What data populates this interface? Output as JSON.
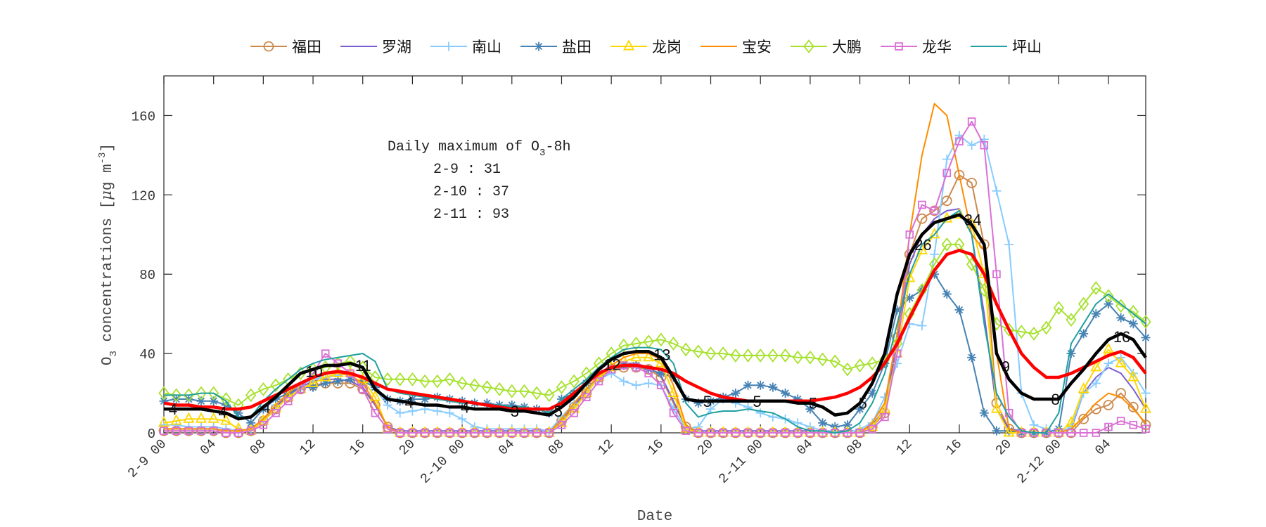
{
  "chart_data": {
    "type": "line",
    "xlabel": "Date",
    "ylabel_parts": {
      "o": "O",
      "sub": "3",
      "mid": " concentrations [",
      "mu": "μ",
      "g": "g m",
      "sup": "-3",
      "end": "]"
    },
    "ylim": [
      0,
      180
    ],
    "yticks": [
      0,
      40,
      80,
      120,
      160
    ],
    "xlim": [
      0,
      79
    ],
    "x_unit": "hours from 2-9 00",
    "xticks": [
      {
        "h": 0,
        "label": "2-9 00"
      },
      {
        "h": 4,
        "label": "04"
      },
      {
        "h": 8,
        "label": "08"
      },
      {
        "h": 12,
        "label": "12"
      },
      {
        "h": 16,
        "label": "16"
      },
      {
        "h": 20,
        "label": "20"
      },
      {
        "h": 24,
        "label": "2-10 00"
      },
      {
        "h": 28,
        "label": "04"
      },
      {
        "h": 32,
        "label": "08"
      },
      {
        "h": 36,
        "label": "12"
      },
      {
        "h": 40,
        "label": "16"
      },
      {
        "h": 44,
        "label": "20"
      },
      {
        "h": 48,
        "label": "2-11 00"
      },
      {
        "h": 52,
        "label": "04"
      },
      {
        "h": 56,
        "label": "08"
      },
      {
        "h": 60,
        "label": "12"
      },
      {
        "h": 64,
        "label": "16"
      },
      {
        "h": 68,
        "label": "20"
      },
      {
        "h": 72,
        "label": "2-12 00"
      },
      {
        "h": 76,
        "label": "04"
      }
    ],
    "grid": false,
    "legend_position": "top",
    "series": [
      {
        "name": "福田",
        "color": "#CD8A4E",
        "marker": "circle",
        "values": [
          1,
          1,
          1,
          1,
          1,
          0,
          0,
          1,
          6,
          12,
          18,
          22,
          24,
          25,
          25,
          25,
          22,
          14,
          3,
          0,
          0,
          0,
          0,
          0,
          0,
          0,
          0,
          0,
          0,
          0,
          0,
          0,
          6,
          13,
          20,
          28,
          32,
          33,
          33,
          32,
          28,
          15,
          3,
          0,
          0,
          0,
          0,
          0,
          0,
          0,
          0,
          0,
          0,
          0,
          0,
          0,
          0,
          3,
          10,
          48,
          90,
          108,
          112,
          117,
          130,
          126,
          95,
          15,
          2,
          0,
          0,
          0,
          0,
          0,
          7,
          12,
          14,
          20,
          13,
          4
        ]
      },
      {
        "name": "罗湖",
        "color": "#7B5FD2",
        "marker": "none",
        "values": [
          2,
          2,
          2,
          2,
          2,
          1,
          1,
          2,
          7,
          13,
          19,
          23,
          26,
          27,
          27,
          26,
          23,
          14,
          3,
          1,
          1,
          1,
          1,
          1,
          1,
          1,
          1,
          1,
          1,
          1,
          1,
          1,
          7,
          14,
          21,
          29,
          33,
          35,
          35,
          33,
          29,
          16,
          3,
          1,
          1,
          1,
          1,
          1,
          1,
          1,
          1,
          1,
          1,
          1,
          1,
          1,
          1,
          4,
          12,
          45,
          85,
          100,
          108,
          112,
          113,
          100,
          60,
          12,
          2,
          1,
          0,
          0,
          0,
          2,
          20,
          28,
          33,
          30,
          22,
          12
        ]
      },
      {
        "name": "南山",
        "color": "#88CCFF",
        "marker": "plus",
        "values": [
          4,
          4,
          3,
          3,
          3,
          2,
          1,
          2,
          7,
          14,
          20,
          24,
          27,
          28,
          29,
          30,
          28,
          22,
          14,
          10,
          11,
          12,
          11,
          10,
          7,
          3,
          2,
          2,
          2,
          2,
          2,
          1,
          8,
          15,
          22,
          27,
          30,
          26,
          24,
          25,
          24,
          12,
          2,
          3,
          12,
          17,
          15,
          13,
          10,
          8,
          7,
          5,
          3,
          1,
          1,
          0,
          2,
          5,
          18,
          35,
          55,
          54,
          90,
          138,
          150,
          145,
          148,
          122,
          95,
          20,
          4,
          2,
          0,
          3,
          20,
          25,
          35,
          38,
          30,
          20
        ]
      },
      {
        "name": "盐田",
        "color": "#4682B4",
        "marker": "asterisk",
        "values": [
          16,
          17,
          17,
          16,
          16,
          14,
          10,
          5,
          12,
          17,
          20,
          23,
          23,
          25,
          26,
          27,
          26,
          23,
          17,
          16,
          17,
          17,
          18,
          17,
          16,
          15,
          15,
          14,
          14,
          13,
          12,
          10,
          17,
          20,
          25,
          30,
          33,
          34,
          34,
          32,
          30,
          28,
          17,
          15,
          16,
          18,
          20,
          24,
          24,
          23,
          20,
          17,
          12,
          5,
          3,
          4,
          12,
          20,
          35,
          62,
          68,
          72,
          80,
          70,
          62,
          38,
          10,
          1,
          1,
          0,
          0,
          0,
          2,
          40,
          50,
          60,
          65,
          58,
          55,
          48
        ]
      },
      {
        "name": "龙岗",
        "color": "#FFD700",
        "marker": "triangle",
        "values": [
          5,
          6,
          7,
          7,
          7,
          6,
          2,
          1,
          6,
          12,
          18,
          22,
          25,
          28,
          30,
          30,
          27,
          18,
          2,
          0,
          0,
          0,
          0,
          0,
          0,
          0,
          0,
          0,
          0,
          0,
          0,
          0,
          5,
          12,
          20,
          28,
          33,
          36,
          38,
          38,
          35,
          20,
          2,
          0,
          0,
          0,
          0,
          0,
          0,
          0,
          0,
          0,
          0,
          0,
          0,
          0,
          0,
          3,
          12,
          40,
          78,
          92,
          100,
          108,
          110,
          105,
          80,
          12,
          0,
          0,
          0,
          0,
          0,
          5,
          22,
          33,
          42,
          35,
          28,
          12
        ]
      },
      {
        "name": "宝安",
        "color": "#FF8C00",
        "marker": "none",
        "values": [
          2,
          2,
          2,
          2,
          2,
          1,
          1,
          2,
          7,
          14,
          20,
          25,
          28,
          30,
          30,
          29,
          25,
          15,
          3,
          0,
          0,
          0,
          0,
          0,
          0,
          0,
          0,
          0,
          0,
          0,
          0,
          0,
          7,
          15,
          22,
          29,
          34,
          38,
          40,
          40,
          37,
          24,
          4,
          0,
          0,
          0,
          0,
          0,
          0,
          0,
          0,
          0,
          0,
          0,
          0,
          0,
          0,
          5,
          15,
          50,
          100,
          140,
          166,
          160,
          130,
          100,
          92,
          40,
          2,
          0,
          0,
          0,
          0,
          2,
          8,
          15,
          20,
          18,
          12,
          5
        ]
      },
      {
        "name": "大鹏",
        "color": "#A6E22E",
        "marker": "diamond",
        "values": [
          20,
          19,
          19,
          20,
          20,
          17,
          14,
          19,
          22,
          24,
          27,
          30,
          32,
          33,
          35,
          36,
          33,
          28,
          27,
          27,
          27,
          26,
          26,
          27,
          25,
          24,
          23,
          22,
          21,
          21,
          20,
          19,
          23,
          26,
          30,
          35,
          40,
          44,
          45,
          46,
          47,
          45,
          42,
          41,
          40,
          40,
          39,
          39,
          39,
          39,
          39,
          38,
          38,
          37,
          36,
          32,
          34,
          35,
          37,
          45,
          60,
          72,
          85,
          95,
          95,
          85,
          72,
          55,
          52,
          51,
          50,
          53,
          63,
          57,
          65,
          73,
          69,
          64,
          61,
          56
        ]
      },
      {
        "name": "龙华",
        "color": "#DA70D6",
        "marker": "square",
        "values": [
          1,
          1,
          1,
          1,
          1,
          0,
          0,
          1,
          4,
          10,
          16,
          22,
          30,
          40,
          35,
          30,
          22,
          10,
          2,
          0,
          0,
          0,
          0,
          0,
          0,
          0,
          0,
          0,
          0,
          0,
          0,
          0,
          4,
          10,
          18,
          26,
          32,
          34,
          33,
          30,
          24,
          10,
          1,
          0,
          0,
          0,
          0,
          0,
          0,
          0,
          0,
          0,
          0,
          0,
          0,
          0,
          0,
          2,
          8,
          40,
          100,
          115,
          112,
          131,
          147,
          157,
          145,
          80,
          10,
          0,
          0,
          0,
          0,
          0,
          0,
          0,
          3,
          6,
          4,
          2
        ]
      },
      {
        "name": "坪山",
        "color": "#20A0A0",
        "marker": "none",
        "values": [
          19,
          19,
          19,
          20,
          20,
          16,
          8,
          8,
          16,
          22,
          27,
          32,
          35,
          37,
          38,
          39,
          40,
          36,
          22,
          20,
          19,
          18,
          17,
          16,
          15,
          15,
          14,
          14,
          13,
          13,
          12,
          10,
          17,
          22,
          27,
          33,
          38,
          42,
          43,
          43,
          42,
          35,
          15,
          8,
          10,
          11,
          11,
          12,
          11,
          10,
          7,
          3,
          1,
          1,
          0,
          1,
          5,
          15,
          30,
          55,
          80,
          95,
          100,
          108,
          112,
          100,
          55,
          20,
          8,
          1,
          0,
          0,
          10,
          45,
          55,
          65,
          70,
          65,
          60,
          55
        ]
      },
      {
        "color": "#FF0000",
        "marker": "none",
        "thick": true,
        "values": [
          15,
          14,
          14,
          13,
          13,
          12,
          12,
          13,
          16,
          19,
          22,
          25,
          28,
          30,
          31,
          30,
          28,
          25,
          22,
          21,
          20,
          19,
          18,
          17,
          16,
          15,
          14,
          13,
          12,
          12,
          12,
          12,
          15,
          20,
          25,
          30,
          33,
          34,
          34,
          33,
          32,
          30,
          26,
          23,
          20,
          18,
          17,
          16,
          16,
          16,
          16,
          16,
          16,
          17,
          18,
          20,
          23,
          28,
          35,
          45,
          58,
          70,
          82,
          90,
          92,
          90,
          80,
          65,
          52,
          40,
          33,
          28,
          28,
          30,
          33,
          36,
          39,
          41,
          38,
          30
        ]
      },
      {
        "color": "#000000",
        "marker": "none",
        "thick": true,
        "values": [
          12,
          12,
          12,
          12,
          11,
          10,
          7,
          8,
          13,
          18,
          24,
          30,
          32,
          34,
          34,
          35,
          33,
          22,
          17,
          16,
          15,
          14,
          14,
          13,
          13,
          12,
          12,
          12,
          11,
          11,
          10,
          9,
          13,
          18,
          25,
          32,
          37,
          40,
          41,
          41,
          38,
          28,
          17,
          16,
          16,
          16,
          16,
          16,
          16,
          16,
          16,
          15,
          15,
          13,
          9,
          10,
          15,
          25,
          40,
          70,
          90,
          100,
          106,
          108,
          110,
          105,
          95,
          40,
          27,
          20,
          17,
          17,
          17,
          25,
          32,
          40,
          47,
          50,
          47,
          38
        ]
      }
    ],
    "point_labels": [
      {
        "text": "4",
        "h": 0.5
      },
      {
        "text": "4",
        "h": 4.5
      },
      {
        "text": "4",
        "h": 8
      },
      {
        "text": "10",
        "h": 11.5
      },
      {
        "text": "11",
        "h": 15.5
      },
      {
        "text": "4",
        "h": 19.5
      },
      {
        "text": "4",
        "h": 24
      },
      {
        "text": "3",
        "h": 28
      },
      {
        "text": "5",
        "h": 31.5
      },
      {
        "text": "12",
        "h": 35.5
      },
      {
        "text": "13",
        "h": 39.5
      },
      {
        "text": "5",
        "h": 43.5
      },
      {
        "text": "5",
        "h": 47.5
      },
      {
        "text": "5",
        "h": 52
      },
      {
        "text": "5",
        "h": 56
      },
      {
        "text": "26",
        "h": 60.5
      },
      {
        "text": "34",
        "h": 64.5
      },
      {
        "text": "9",
        "h": 67.5
      },
      {
        "text": "8",
        "h": 71.5
      },
      {
        "text": "16",
        "h": 76.5
      }
    ],
    "annotation": {
      "title_parts": {
        "a": "Daily maximum of O",
        "sub": "3",
        "b": "-8h"
      },
      "lines": [
        "2-9 : 31",
        "2-10 : 37",
        "2-11 : 93"
      ]
    }
  }
}
